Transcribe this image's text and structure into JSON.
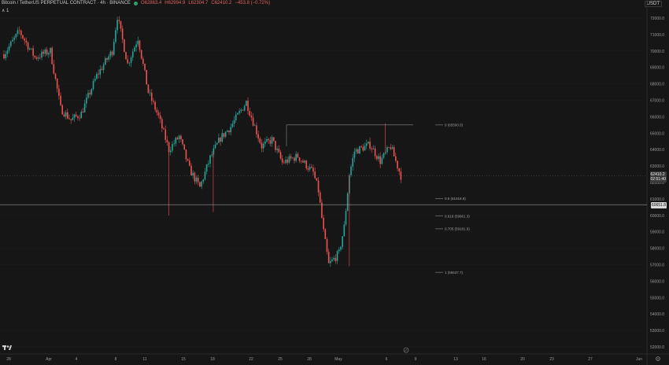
{
  "chart_title": "Bitcoin / TetherUS PERPETUAL CONTRACT · 4h · BINANCE",
  "ohlc": {
    "o": "O62863.4",
    "h": "H62994.9",
    "l": "L62304.7",
    "c": "C62410.2",
    "chg": "−453.8 (−0.72%)"
  },
  "collapse_label": "∧ 1",
  "currency": "USDT",
  "price_axis": [
    "72000.0",
    "71000.0",
    "70000.0",
    "69000.0",
    "68000.0",
    "67000.0",
    "66000.0",
    "65000.0",
    "64000.0",
    "63000.0",
    "62000.0",
    "61000.0",
    "60000.0",
    "59000.0",
    "58000.0",
    "57000.0",
    "56000.0",
    "55000.0",
    "54000.0",
    "53000.0",
    "52000.0"
  ],
  "time_axis": [
    "28",
    "Apr",
    "4",
    "8",
    "11",
    "15",
    "18",
    "22",
    "25",
    "28",
    "May",
    "6",
    "9",
    "13",
    "16",
    "20",
    "23",
    "27",
    "Jun"
  ],
  "current_price": {
    "value": "62410.2",
    "countdown": "02:51:40"
  },
  "line_price": "60651.8",
  "fib_levels": [
    {
      "label": "0 (65500.0)",
      "price": 65500.0
    },
    {
      "label": "0.5 (61018.9)",
      "price": 61018.9
    },
    {
      "label": "0.618 (59961.3)",
      "price": 59961.3
    },
    {
      "label": "0.705 (59181.6)",
      "price": 59181.6
    },
    {
      "label": "1 (56537.7)",
      "price": 56537.7
    }
  ],
  "colors": {
    "up": "#26a69a",
    "down": "#ef5350",
    "bg": "#161616",
    "grid": "#222222"
  },
  "chart_data": {
    "type": "candlestick",
    "symbol": "BTCUSDT.P",
    "interval": "4h",
    "ylim": [
      52000,
      72800
    ],
    "anchors": [
      {
        "d": 0,
        "p": 69800
      },
      {
        "d": 1.5,
        "p": 71200
      },
      {
        "d": 3,
        "p": 69600
      },
      {
        "d": 4.5,
        "p": 70000
      },
      {
        "d": 5.5,
        "p": 66500
      },
      {
        "d": 6.5,
        "p": 65800
      },
      {
        "d": 7.5,
        "p": 66200
      },
      {
        "d": 9,
        "p": 68500
      },
      {
        "d": 10.5,
        "p": 70000
      },
      {
        "d": 11,
        "p": 72100
      },
      {
        "d": 12,
        "p": 69200
      },
      {
        "d": 13,
        "p": 70800
      },
      {
        "d": 14,
        "p": 67500
      },
      {
        "d": 15,
        "p": 66000
      },
      {
        "d": 16,
        "p": 64000
      },
      {
        "d": 17,
        "p": 64800
      },
      {
        "d": 18,
        "p": 62800
      },
      {
        "d": 19,
        "p": 61700
      },
      {
        "d": 20,
        "p": 63500
      },
      {
        "d": 21,
        "p": 64700
      },
      {
        "d": 22,
        "p": 65400
      },
      {
        "d": 23.5,
        "p": 66900
      },
      {
        "d": 25,
        "p": 64200
      },
      {
        "d": 26,
        "p": 64600
      },
      {
        "d": 27,
        "p": 63200
      },
      {
        "d": 28.5,
        "p": 63600
      },
      {
        "d": 30,
        "p": 62600
      },
      {
        "d": 30.5,
        "p": 61500
      },
      {
        "d": 31,
        "p": 59000
      },
      {
        "d": 31.5,
        "p": 57000
      },
      {
        "d": 32.5,
        "p": 57700
      },
      {
        "d": 33,
        "p": 59300
      },
      {
        "d": 33.5,
        "p": 62500
      },
      {
        "d": 34,
        "p": 63900
      },
      {
        "d": 35.5,
        "p": 64300
      },
      {
        "d": 36.5,
        "p": 63300
      },
      {
        "d": 37.5,
        "p": 64200
      },
      {
        "d": 38.5,
        "p": 62400
      }
    ]
  }
}
